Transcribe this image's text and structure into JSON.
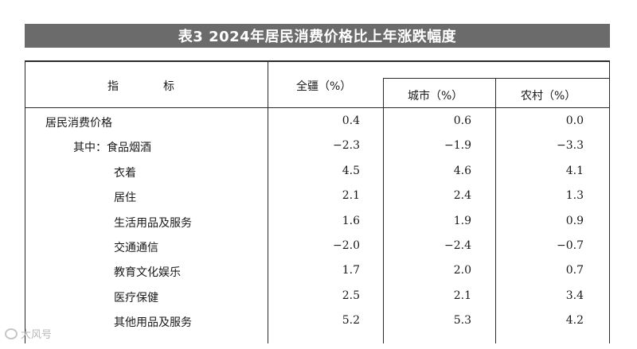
{
  "title": "表3  2024年居民消费价格比上年涨跌幅度",
  "headers": {
    "indicator": "指　　　　标",
    "national": "全疆（%）",
    "urban": "城市（%）",
    "rural": "农村（%）"
  },
  "rows": [
    {
      "label": "居民消费价格",
      "national": "0.4",
      "urban": "0.6",
      "rural": "0.0"
    },
    {
      "label": "其中：食品烟酒",
      "national": "−2.3",
      "urban": "−1.9",
      "rural": "−3.3"
    },
    {
      "label": "衣着",
      "national": "4.5",
      "urban": "4.6",
      "rural": "4.1"
    },
    {
      "label": "居住",
      "national": "2.1",
      "urban": "2.4",
      "rural": "1.3"
    },
    {
      "label": "生活用品及服务",
      "national": "1.6",
      "urban": "1.9",
      "rural": "0.9"
    },
    {
      "label": "交通通信",
      "national": "−2.0",
      "urban": "−2.4",
      "rural": "−0.7"
    },
    {
      "label": "教育文化娱乐",
      "national": "1.7",
      "urban": "2.0",
      "rural": "0.7"
    },
    {
      "label": "医疗保健",
      "national": "2.5",
      "urban": "2.1",
      "rural": "3.4"
    },
    {
      "label": "其他用品及服务",
      "national": "5.2",
      "urban": "5.3",
      "rural": "4.2"
    }
  ],
  "watermark": {
    "text": "大风号",
    "icon": "logo-icon"
  }
}
